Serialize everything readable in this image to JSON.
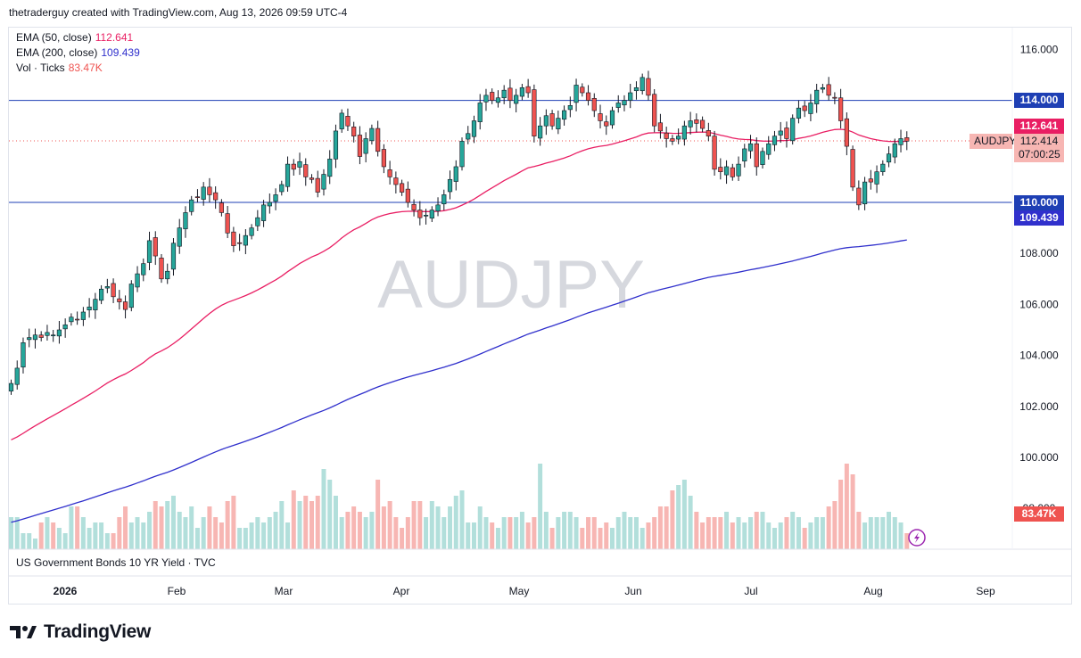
{
  "header": {
    "attribution": "thetraderguy created with TradingView.com, Aug 13, 2026 09:59 UTC-4"
  },
  "legend": {
    "ema50_label": "EMA (50, close)",
    "ema50_value": "112.641",
    "ema200_label": "EMA (200, close)",
    "ema200_value": "109.439",
    "vol_label": "Vol · Ticks",
    "vol_value": "83.47K"
  },
  "watermark": "AUDJPY",
  "subpane_label": "US Government Bonds 10 YR Yield · TVC",
  "footer": {
    "brand": "TradingView"
  },
  "price_tags": {
    "line_114": "114.000",
    "ema50": "112.641",
    "symbol": "AUDJPY",
    "last_price": "112.414",
    "countdown": "07:00:25",
    "line_110": "110.000",
    "ema200": "109.439",
    "volume": "83.47K"
  },
  "colors": {
    "up": "#26a69a",
    "down": "#ef5350",
    "ema50": "#e91e63",
    "ema200": "#3030cc",
    "hline": "#1e3fb4",
    "vol_up": "#b2dfdb",
    "vol_down": "#f7b6b3"
  },
  "chart_data": {
    "type": "candlestick",
    "symbol": "AUDJPY",
    "y_axis_ticks": [
      "116.000",
      "114.000",
      "112.000",
      "110.000",
      "108.000",
      "106.000",
      "104.000",
      "102.000",
      "100.000",
      "98.000"
    ],
    "y_range": [
      98,
      116.5
    ],
    "x_axis_labels": [
      "2026",
      "Feb",
      "Mar",
      "Apr",
      "May",
      "Jun",
      "Jul",
      "Aug",
      "Sep"
    ],
    "horizontal_lines": [
      114.0,
      110.0
    ],
    "last_close": 112.414,
    "closes": [
      102.9,
      103.5,
      104.5,
      104.7,
      104.8,
      104.7,
      104.9,
      104.8,
      105.0,
      105.2,
      105.5,
      105.4,
      105.7,
      105.9,
      106.2,
      106.6,
      106.7,
      106.3,
      106.1,
      105.8,
      106.8,
      107.2,
      107.6,
      108.5,
      107.9,
      107.0,
      107.3,
      108.4,
      109.0,
      109.6,
      110.1,
      110.2,
      110.6,
      110.3,
      110.1,
      109.6,
      108.8,
      108.3,
      108.4,
      108.7,
      109.0,
      109.4,
      109.9,
      110.0,
      110.3,
      110.7,
      111.5,
      111.3,
      111.6,
      111.0,
      110.9,
      110.4,
      111.1,
      111.7,
      112.8,
      113.5,
      113.0,
      112.6,
      111.8,
      112.5,
      112.9,
      112.0,
      111.4,
      111.0,
      110.7,
      110.4,
      110.0,
      109.7,
      109.4,
      109.5,
      109.7,
      109.9,
      110.3,
      110.9,
      111.4,
      112.4,
      112.7,
      113.2,
      113.9,
      114.2,
      114.0,
      114.1,
      114.4,
      114.0,
      114.2,
      114.5,
      114.3,
      112.6,
      113.0,
      113.4,
      113.0,
      113.3,
      113.6,
      113.8,
      114.6,
      114.3,
      114.0,
      113.6,
      113.2,
      113.0,
      113.6,
      113.9,
      114.0,
      114.3,
      114.5,
      114.9,
      114.2,
      113.0,
      112.8,
      112.5,
      112.4,
      112.6,
      113.0,
      113.2,
      113.1,
      112.9,
      112.6,
      111.3,
      111.2,
      111.4,
      111.0,
      111.5,
      112.1,
      112.3,
      111.4,
      112.0,
      112.3,
      112.6,
      112.8,
      112.5,
      113.3,
      113.7,
      113.6,
      113.9,
      114.4,
      114.5,
      114.2,
      114.1,
      113.2,
      112.2,
      110.6,
      109.9,
      110.8,
      110.8,
      111.2,
      111.5,
      111.9,
      112.3,
      112.5,
      112.4
    ],
    "volumes": [
      86,
      86,
      83,
      83,
      82,
      85,
      86,
      85,
      84,
      83,
      88,
      88,
      86,
      84,
      85,
      85,
      83,
      83,
      86,
      88,
      85,
      86,
      85,
      87,
      89,
      88,
      89,
      90,
      87,
      86,
      88,
      84,
      86,
      88,
      86,
      85,
      89,
      90,
      84,
      84,
      85,
      86,
      85,
      86,
      87,
      89,
      85,
      91,
      89,
      90,
      89,
      90,
      95,
      93,
      90,
      86,
      87,
      88,
      87,
      86,
      87,
      93,
      88,
      89,
      86,
      84,
      86,
      89,
      89,
      86,
      89,
      88,
      86,
      88,
      90,
      91,
      85,
      85,
      88,
      86,
      85,
      84,
      86,
      86,
      86,
      87,
      85,
      86,
      96,
      87,
      84,
      86,
      87,
      87,
      86,
      84,
      86,
      86,
      84,
      85,
      84,
      86,
      87,
      86,
      86,
      84,
      85,
      86,
      88,
      88,
      91,
      92,
      93,
      90,
      87,
      85,
      86,
      86,
      86,
      87,
      85,
      86,
      85,
      86,
      87,
      87,
      85,
      84,
      85,
      86,
      87,
      86,
      84,
      85,
      86,
      86,
      88,
      89,
      93,
      96,
      94,
      87,
      85,
      86,
      86,
      86,
      87,
      86,
      85,
      83
    ]
  }
}
